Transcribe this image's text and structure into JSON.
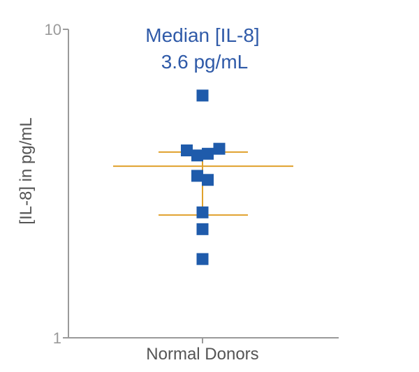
{
  "chart_data": {
    "type": "scatter",
    "scale": "log",
    "ylabel": "[IL-8] in pg/mL",
    "xlabel": "",
    "categories": [
      "Normal Donors"
    ],
    "ylim": [
      1,
      10
    ],
    "yticks": [
      {
        "value": 1,
        "label": "1"
      },
      {
        "value": 10,
        "label": "10"
      }
    ],
    "annotation": {
      "line1": "Median [IL-8]",
      "line2": "3.6 pg/mL"
    },
    "summary": {
      "median": 3.6,
      "q1": 2.5,
      "q3": 4.0
    },
    "series": [
      {
        "category": "Normal Donors",
        "points": [
          {
            "offset": 0.0,
            "y": 6.1
          },
          {
            "offset": -0.45,
            "y": 4.05
          },
          {
            "offset": 0.48,
            "y": 4.1
          },
          {
            "offset": -0.15,
            "y": 3.9
          },
          {
            "offset": 0.15,
            "y": 3.95
          },
          {
            "offset": -0.15,
            "y": 3.35
          },
          {
            "offset": 0.15,
            "y": 3.25
          },
          {
            "offset": 0.0,
            "y": 2.55
          },
          {
            "offset": 0.0,
            "y": 2.25
          },
          {
            "offset": 0.0,
            "y": 1.8
          }
        ]
      }
    ],
    "colors": {
      "marker": "#1f5bab",
      "summary_line": "#e0a12b",
      "axis": "#9a9a9a",
      "annotation": "#2f5aa8"
    },
    "grid": false,
    "legend": "none"
  }
}
